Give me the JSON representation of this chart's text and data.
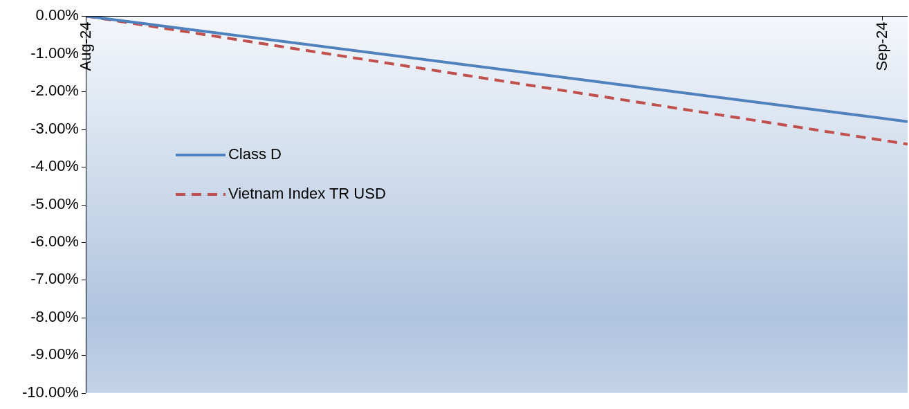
{
  "chart_data": {
    "type": "line",
    "x": [
      "2024-08-01",
      "2024-09-02"
    ],
    "xlim": [
      "2024-08-01",
      "2024-09-02"
    ],
    "xticks": [
      {
        "value": "2024-08-01",
        "label": "Aug-24"
      },
      {
        "value": "2024-09-01",
        "label": "Sep-24"
      }
    ],
    "ylim": [
      -10,
      0
    ],
    "yticks": [
      {
        "value": 0,
        "label": "0.00%"
      },
      {
        "value": -1,
        "label": "-1.00%"
      },
      {
        "value": -2,
        "label": "-2.00%"
      },
      {
        "value": -3,
        "label": "-3.00%"
      },
      {
        "value": -4,
        "label": "-4.00%"
      },
      {
        "value": -5,
        "label": "-5.00%"
      },
      {
        "value": -6,
        "label": "-6.00%"
      },
      {
        "value": -7,
        "label": "-7.00%"
      },
      {
        "value": -8,
        "label": "-8.00%"
      },
      {
        "value": -9,
        "label": "-9.00%"
      },
      {
        "value": -10,
        "label": "-10.00%"
      }
    ],
    "series": [
      {
        "name": "Class D",
        "color": "#4f81bd",
        "values": [
          0,
          -2.8
        ],
        "line_style": "solid"
      },
      {
        "name": "Vietnam Index TR USD",
        "color": "#c0504d",
        "values": [
          0,
          -3.4
        ],
        "line_style": "dashed"
      }
    ],
    "legend": "left",
    "grid": false,
    "marker": "none"
  }
}
